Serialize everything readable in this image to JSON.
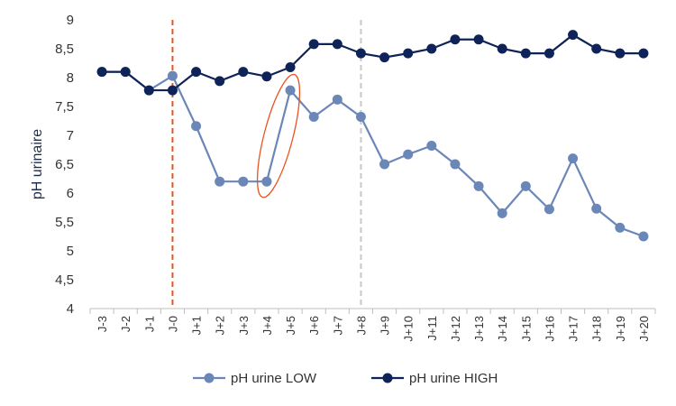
{
  "chart_data": {
    "type": "line",
    "ylabel": "pH urinaire",
    "xlabel": "",
    "ylim": [
      4,
      9
    ],
    "y_ticks": [
      "4",
      "4,5",
      "5",
      "5,5",
      "6",
      "6,5",
      "7",
      "7,5",
      "8",
      "8,5",
      "9"
    ],
    "grid": false,
    "legend_position": "bottom",
    "categories": [
      "J-3",
      "J-2",
      "J-1",
      "J-0",
      "J+1",
      "J+2",
      "J+3",
      "J+4",
      "J+5",
      "J+6",
      "J+7",
      "J+8",
      "J+9",
      "J+10",
      "J+11",
      "J+12",
      "J+13",
      "J+14",
      "J+15",
      "J+16",
      "J+17",
      "J+18",
      "J+19",
      "J+20"
    ],
    "series": [
      {
        "name": "pH urine LOW",
        "color": "#6b87b8",
        "values": [
          8.1,
          8.1,
          7.78,
          8.03,
          7.16,
          6.2,
          6.2,
          6.2,
          7.78,
          7.32,
          7.62,
          7.32,
          6.5,
          6.67,
          6.82,
          6.5,
          6.12,
          5.65,
          6.12,
          5.72,
          6.6,
          5.73,
          5.4,
          5.25
        ]
      },
      {
        "name": "pH urine HIGH",
        "color": "#0e2357",
        "values": [
          8.1,
          8.1,
          7.78,
          7.78,
          8.1,
          7.94,
          8.1,
          8.02,
          8.18,
          8.58,
          8.58,
          8.42,
          8.35,
          8.42,
          8.5,
          8.66,
          8.66,
          8.5,
          8.42,
          8.42,
          8.74,
          8.5,
          8.42,
          8.42
        ]
      }
    ],
    "vertical_markers": [
      {
        "category": "J-0",
        "color": "#e8541e",
        "style": "dashed"
      },
      {
        "category": "J+8",
        "color": "#c8c8c8",
        "style": "dashed"
      }
    ],
    "highlight": {
      "series": "pH urine LOW",
      "from": "J+4",
      "to": "J+5",
      "color": "#e8541e"
    },
    "axis_color": "#bfbfbf"
  }
}
